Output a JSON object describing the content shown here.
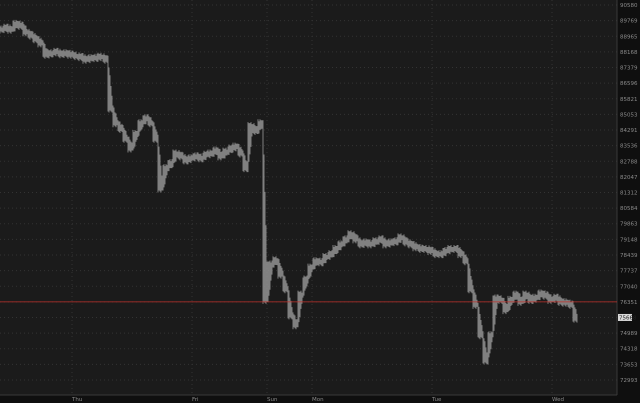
{
  "chart_data": {
    "type": "line",
    "style": "price bars",
    "y_scale": "log",
    "ylim": [
      72993,
      90580
    ],
    "grid": true,
    "y_ticks": [
      "90580",
      "89769",
      "88965",
      "88168",
      "87379",
      "86596",
      "85821",
      "85053",
      "84291",
      "83536",
      "82788",
      "82047",
      "81312",
      "80584",
      "79863",
      "79148",
      "78439",
      "77737",
      "77040",
      "76351",
      "75668",
      "74989",
      "74318",
      "73653",
      "72993"
    ],
    "x_ticks": [
      {
        "label": "Thu",
        "index": 14
      },
      {
        "label": "Fri",
        "index": 38
      },
      {
        "label": "Sun",
        "index": 53
      },
      {
        "label": "Mon",
        "index": 62
      },
      {
        "label": "Tue",
        "index": 86
      },
      {
        "label": "Wed",
        "index": 110
      }
    ],
    "reference_line": {
      "value": 76351,
      "color": "#c0302b"
    },
    "current_price": {
      "label": "75668",
      "value": 75668
    },
    "bar_color": "#9a9a9a",
    "values": [
      89310,
      89400,
      89300,
      89600,
      89500,
      89170,
      89000,
      88810,
      88600,
      88020,
      88100,
      88170,
      88050,
      88100,
      88020,
      87950,
      87900,
      87770,
      87850,
      87870,
      87920,
      87770,
      85340,
      84620,
      84340,
      83870,
      83400,
      84100,
      84620,
      84860,
      84620,
      83870,
      81500,
      82460,
      82700,
      83160,
      83020,
      82830,
      82930,
      83020,
      82930,
      83100,
      83160,
      83300,
      83020,
      83250,
      83400,
      83490,
      83160,
      82460,
      84480,
      84240,
      84620,
      76440,
      78010,
      78200,
      77560,
      76910,
      75760,
      75330,
      76670,
      77340,
      77870,
      78160,
      78110,
      78350,
      78480,
      78710,
      78920,
      79150,
      79380,
      79150,
      78920,
      79010,
      78920,
      79060,
      79150,
      78920,
      79010,
      79060,
      79240,
      79010,
      78920,
      78790,
      78710,
      78710,
      78620,
      78480,
      78480,
      78620,
      78710,
      78710,
      78480,
      78160,
      76910,
      76220,
      74900,
      73820,
      74900,
      76500,
      76440,
      75990,
      76440,
      76670,
      76350,
      76670,
      76440,
      76530,
      76720,
      76620,
      76440,
      76530,
      76350,
      76310,
      76220,
      75620
    ]
  }
}
